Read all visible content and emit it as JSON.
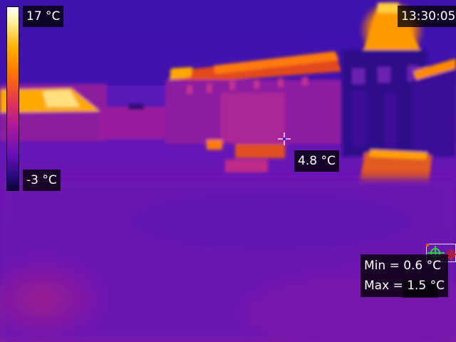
{
  "scale": {
    "max_label": "17 °C",
    "min_label": "-3 °C"
  },
  "clock": "13:30:05",
  "spot": {
    "label": "4.8 °C"
  },
  "roi": {
    "min_label": "Min = 0.6 °C",
    "max_label": "Max = 1.5 °C"
  },
  "palette": {
    "accent": "#ff9a00",
    "roi_marker": "#2ecc40",
    "roi_marker_alt": "#c81e1e"
  }
}
